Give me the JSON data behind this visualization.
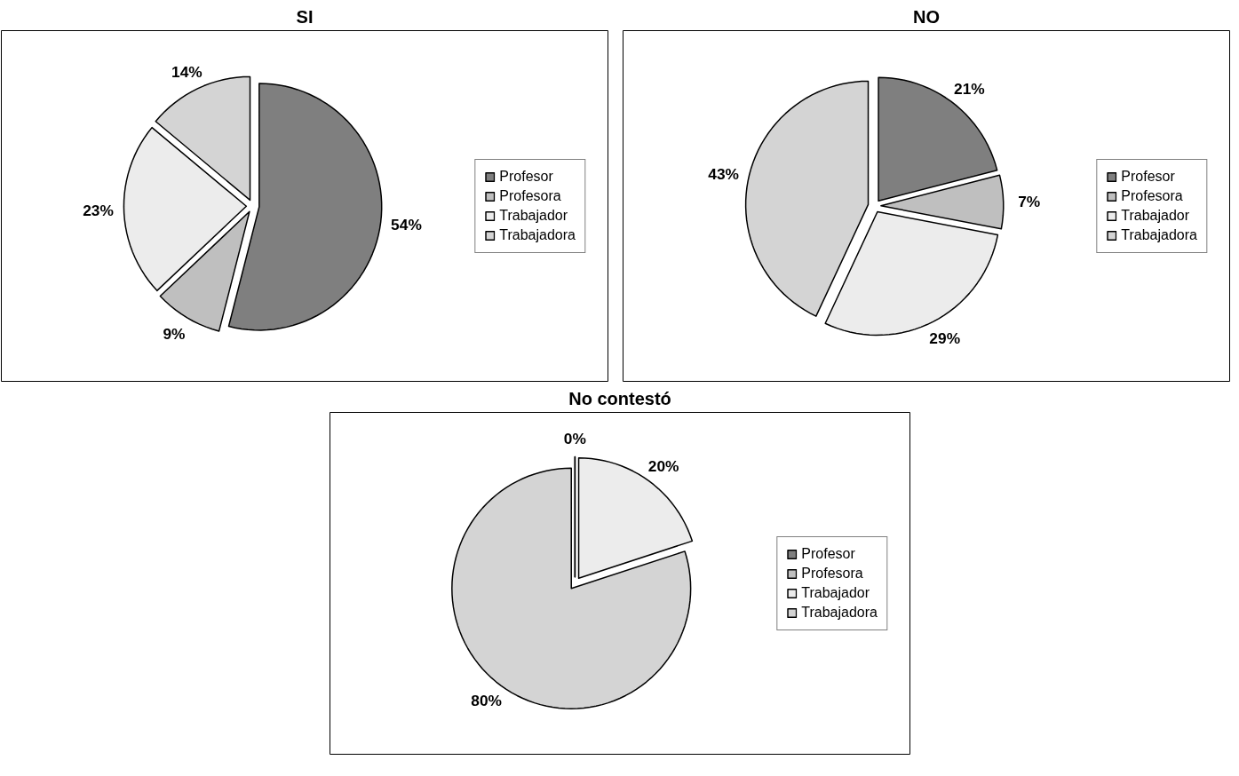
{
  "chart_data": [
    {
      "type": "pie",
      "title": "SI",
      "categories": [
        "Profesor",
        "Profesora",
        "Trabajador",
        "Trabajadora"
      ],
      "values": [
        54,
        9,
        23,
        14
      ],
      "value_labels": [
        "54%",
        "9%",
        "23%",
        "14%"
      ],
      "colors": [
        "#7f7f7f",
        "#bfbfbf",
        "#ececec",
        "#d4d4d4"
      ],
      "legend": "right"
    },
    {
      "type": "pie",
      "title": "NO",
      "categories": [
        "Profesor",
        "Profesora",
        "Trabajador",
        "Trabajadora"
      ],
      "values": [
        21,
        7,
        29,
        43
      ],
      "value_labels": [
        "21%",
        "7%",
        "29%",
        "43%"
      ],
      "colors": [
        "#7f7f7f",
        "#bfbfbf",
        "#ececec",
        "#d4d4d4"
      ],
      "legend": "right"
    },
    {
      "type": "pie",
      "title": "No contestó",
      "categories": [
        "Profesor",
        "Profesora",
        "Trabajador",
        "Trabajadora"
      ],
      "values": [
        0,
        0,
        20,
        80
      ],
      "value_labels": [
        "0%",
        null,
        "20%",
        "80%"
      ],
      "colors": [
        "#7f7f7f",
        "#bfbfbf",
        "#ececec",
        "#d4d4d4"
      ],
      "legend": "right"
    }
  ]
}
